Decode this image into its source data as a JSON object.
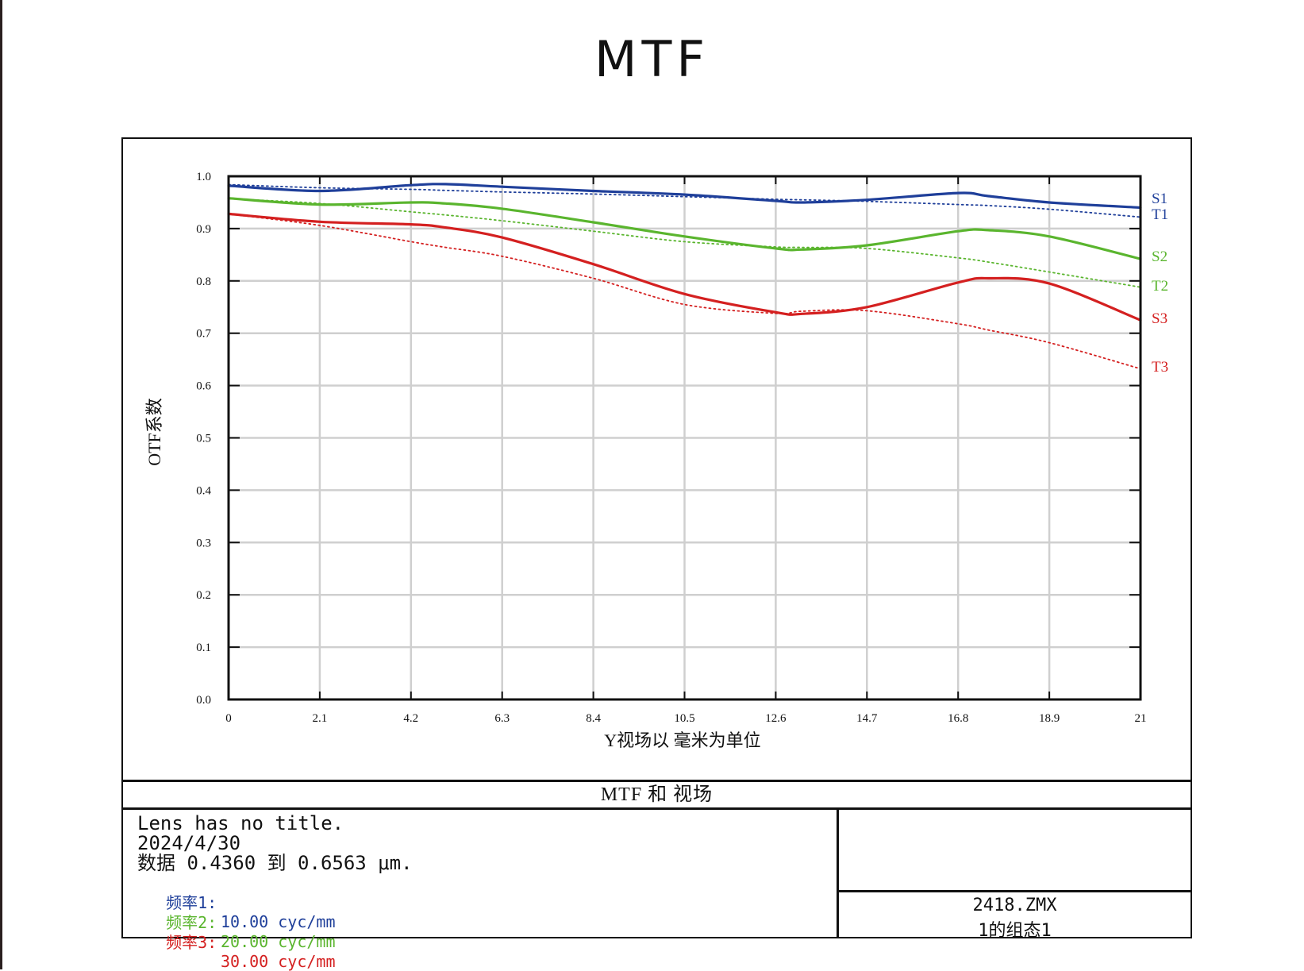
{
  "page": {
    "title": "MTF"
  },
  "chart_data": {
    "type": "line",
    "xlabel": "Y视场以 毫米为单位",
    "ylabel": "OTF系数",
    "xlim": [
      0,
      21
    ],
    "ylim": [
      0.0,
      1.0
    ],
    "x_ticks": [
      "0",
      "2.1",
      "4.2",
      "6.3",
      "8.4",
      "10.5",
      "12.6",
      "14.7",
      "16.8",
      "18.9",
      "21"
    ],
    "y_ticks": [
      "0.0",
      "0.1",
      "0.2",
      "0.3",
      "0.4",
      "0.5",
      "0.6",
      "0.7",
      "0.8",
      "0.9",
      "1.0"
    ],
    "grid": true,
    "x": [
      0,
      2.1,
      4.2,
      5.0,
      6.3,
      8.4,
      10.5,
      12.6,
      13.2,
      14.7,
      16.8,
      17.5,
      18.9,
      21
    ],
    "series": [
      {
        "name": "S1",
        "color": "#1f3f9a",
        "style": "solid",
        "values": [
          0.982,
          0.972,
          0.983,
          0.985,
          0.98,
          0.972,
          0.965,
          0.953,
          0.95,
          0.955,
          0.968,
          0.962,
          0.95,
          0.94
        ]
      },
      {
        "name": "T1",
        "color": "#1f3f9a",
        "style": "dotted",
        "values": [
          0.984,
          0.978,
          0.975,
          0.973,
          0.97,
          0.966,
          0.961,
          0.956,
          0.955,
          0.952,
          0.946,
          0.944,
          0.937,
          0.922
        ]
      },
      {
        "name": "S2",
        "color": "#5ab52e",
        "style": "solid",
        "values": [
          0.958,
          0.946,
          0.95,
          0.948,
          0.938,
          0.912,
          0.885,
          0.862,
          0.86,
          0.868,
          0.895,
          0.897,
          0.885,
          0.842
        ]
      },
      {
        "name": "T2",
        "color": "#5ab52e",
        "style": "dotted",
        "values": [
          0.957,
          0.948,
          0.932,
          0.926,
          0.915,
          0.895,
          0.875,
          0.865,
          0.864,
          0.862,
          0.844,
          0.836,
          0.817,
          0.788
        ]
      },
      {
        "name": "S3",
        "color": "#d42020",
        "style": "solid",
        "values": [
          0.928,
          0.913,
          0.908,
          0.902,
          0.883,
          0.832,
          0.775,
          0.74,
          0.737,
          0.75,
          0.797,
          0.805,
          0.795,
          0.725
        ]
      },
      {
        "name": "T3",
        "color": "#d42020",
        "style": "dotted",
        "values": [
          0.928,
          0.906,
          0.875,
          0.864,
          0.847,
          0.805,
          0.755,
          0.738,
          0.742,
          0.743,
          0.718,
          0.706,
          0.682,
          0.632
        ]
      }
    ]
  },
  "table": {
    "subtitle": "MTF 和 视场",
    "lens_title": "Lens has no title.",
    "date": "2024/4/30",
    "data_range": "数据 0.4360 到 0.6563 μm.",
    "frequencies": [
      {
        "label": "频率1:",
        "value": "10.00 cyc/mm",
        "color": "#1f3f9a"
      },
      {
        "label": "频率2:",
        "value": "20.00 cyc/mm",
        "color": "#5ab52e"
      },
      {
        "label": "频率3:",
        "value": "30.00 cyc/mm",
        "color": "#d42020"
      }
    ],
    "file_name": "2418.ZMX",
    "config": "1的组态1"
  }
}
